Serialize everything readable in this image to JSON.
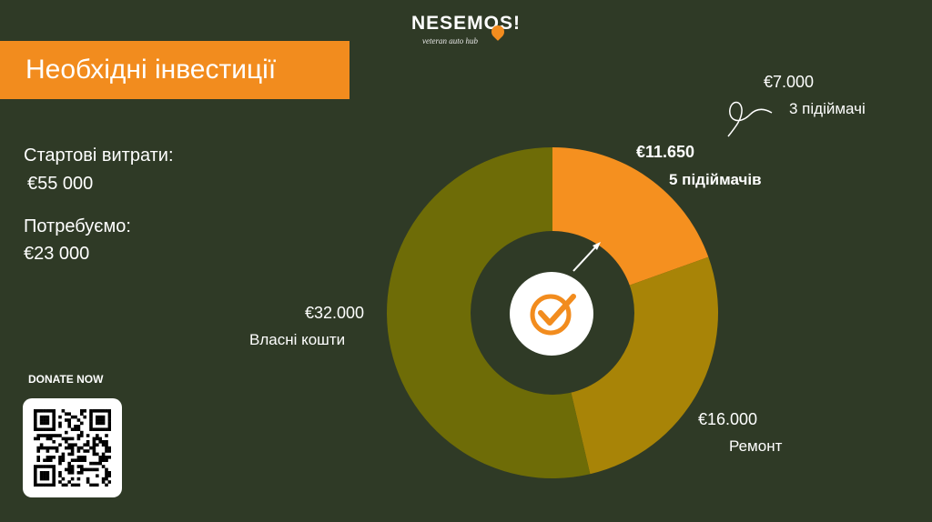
{
  "logo": {
    "word": "NESEMOS!",
    "tagline": "veteran auto hub"
  },
  "title": "Необхідні інвестиції",
  "startup": {
    "label": "Стартові витрати:",
    "value": "€55 000"
  },
  "needed": {
    "label": "Потребуємо:",
    "value": "€23 000"
  },
  "donate": {
    "label": "DONATE NOW",
    "qr_icon": "qr-code-icon"
  },
  "center_icon": "checkmark-circle-icon",
  "colors": {
    "background": "#2f3a26",
    "accent": "#f28c1e",
    "slice_mid": "#a88407",
    "slice_large": "#6e6c07",
    "center": "#ffffff"
  },
  "annotation": {
    "value": "€7.000",
    "text": "3 підіймачі"
  },
  "chart_data": {
    "type": "pie",
    "variant": "donut",
    "slices": [
      {
        "value_label": "€11.650",
        "name": "5 підіймачів",
        "value": 11650,
        "color": "#f5901f",
        "bold": true
      },
      {
        "value_label": "€16.000",
        "name": "Ремонт",
        "value": 16000,
        "color": "#a88407",
        "bold": false
      },
      {
        "value_label": "€32.000",
        "name": "Власні кошти",
        "value": 32000,
        "color": "#6e6c07",
        "bold": false
      }
    ]
  }
}
